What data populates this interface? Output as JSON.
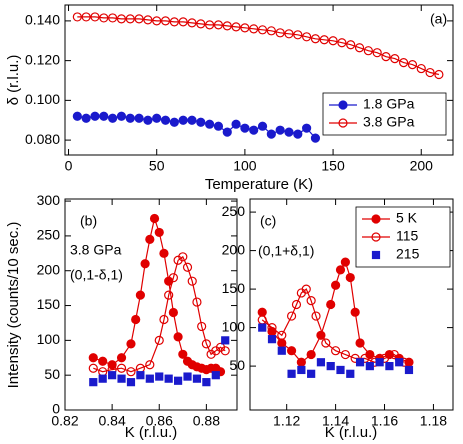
{
  "chart_data": [
    {
      "type": "scatter",
      "annotations": [
        "(a)"
      ],
      "x_label": "Temperature (K)",
      "y_label": "δ (r.l.u.)",
      "xlim": [
        -2,
        218
      ],
      "ylim": [
        0.0725,
        0.148
      ],
      "xticks": [
        0,
        50,
        100,
        150,
        200
      ],
      "yticks": [
        {
          "value": 0.08,
          "label": "0.080"
        },
        {
          "value": 0.1,
          "label": "0.100"
        },
        {
          "value": 0.12,
          "label": "0.120"
        },
        {
          "value": 0.14,
          "label": "0.140"
        }
      ],
      "legend": "lower right",
      "series": [
        {
          "name": "1.8 GPa",
          "color": "#1a1acc",
          "marker": "circle",
          "filled": true,
          "line": true,
          "x": [
            5,
            10,
            15,
            20,
            25,
            30,
            35,
            40,
            45,
            50,
            55,
            60,
            65,
            70,
            75,
            80,
            85,
            90,
            95,
            100,
            105,
            110,
            115,
            120,
            125,
            130,
            135,
            140
          ],
          "values": [
            0.092,
            0.091,
            0.092,
            0.092,
            0.091,
            0.092,
            0.091,
            0.091,
            0.09,
            0.091,
            0.09,
            0.089,
            0.09,
            0.09,
            0.089,
            0.088,
            0.087,
            0.084,
            0.088,
            0.086,
            0.085,
            0.087,
            0.083,
            0.085,
            0.084,
            0.083,
            0.086,
            0.081
          ]
        },
        {
          "name": "3.8 GPa",
          "color": "#e00000",
          "marker": "circle",
          "filled": false,
          "line": true,
          "x": [
            5,
            10,
            15,
            20,
            25,
            30,
            35,
            40,
            45,
            50,
            55,
            60,
            65,
            70,
            75,
            80,
            85,
            90,
            95,
            100,
            105,
            110,
            115,
            120,
            125,
            130,
            135,
            140,
            145,
            150,
            155,
            160,
            165,
            170,
            175,
            180,
            185,
            190,
            195,
            200,
            205,
            210
          ],
          "values": [
            0.142,
            0.142,
            0.142,
            0.1415,
            0.1415,
            0.141,
            0.141,
            0.141,
            0.1405,
            0.14,
            0.14,
            0.1395,
            0.1395,
            0.139,
            0.1385,
            0.138,
            0.138,
            0.1375,
            0.137,
            0.1365,
            0.136,
            0.1355,
            0.135,
            0.134,
            0.1335,
            0.133,
            0.132,
            0.131,
            0.1305,
            0.13,
            0.129,
            0.128,
            0.1265,
            0.125,
            0.124,
            0.122,
            0.121,
            0.119,
            0.118,
            0.116,
            0.114,
            0.113
          ]
        }
      ]
    },
    {
      "type": "scatter",
      "annotations": [
        "(b)",
        "3.8 GPa",
        "(0,1-δ,1)"
      ],
      "x_label": "K (r.l.u.)",
      "y_label": "Intensity (counts/10 sec.)",
      "xlim": [
        0.82,
        0.893
      ],
      "ylim": [
        0,
        303
      ],
      "xticks": [
        0.82,
        0.84,
        0.86,
        0.88
      ],
      "yticks": [
        0,
        50,
        100,
        150,
        200,
        250,
        300
      ],
      "series": [
        {
          "color": "#e00000",
          "marker": "circle",
          "filled": true,
          "line": true,
          "x": [
            0.832,
            0.836,
            0.84,
            0.844,
            0.848,
            0.85,
            0.852,
            0.854,
            0.856,
            0.858,
            0.86,
            0.862,
            0.864,
            0.866,
            0.868,
            0.87,
            0.872,
            0.874,
            0.876,
            0.878,
            0.88,
            0.882,
            0.884,
            0.886
          ],
          "values": [
            75,
            70,
            65,
            75,
            95,
            130,
            165,
            210,
            245,
            275,
            255,
            225,
            185,
            140,
            105,
            80,
            70,
            65,
            62,
            60,
            58,
            60,
            60,
            55
          ]
        },
        {
          "color": "#e00000",
          "marker": "circle",
          "filled": false,
          "line": true,
          "x": [
            0.832,
            0.836,
            0.84,
            0.844,
            0.848,
            0.852,
            0.856,
            0.86,
            0.862,
            0.864,
            0.866,
            0.868,
            0.87,
            0.872,
            0.874,
            0.876,
            0.878,
            0.88,
            0.882,
            0.884,
            0.886,
            0.888
          ],
          "values": [
            60,
            55,
            58,
            60,
            55,
            60,
            65,
            100,
            130,
            165,
            190,
            215,
            220,
            205,
            185,
            155,
            120,
            95,
            80,
            85,
            90,
            85
          ]
        },
        {
          "color": "#1a1acc",
          "marker": "square",
          "filled": true,
          "line": false,
          "x": [
            0.832,
            0.836,
            0.84,
            0.844,
            0.848,
            0.852,
            0.856,
            0.86,
            0.864,
            0.868,
            0.872,
            0.876,
            0.88,
            0.884,
            0.888
          ],
          "values": [
            40,
            45,
            50,
            45,
            40,
            50,
            45,
            48,
            45,
            42,
            48,
            45,
            40,
            50,
            100
          ]
        }
      ]
    },
    {
      "type": "scatter",
      "annotations": [
        "(c)",
        "(0,1+δ,1)"
      ],
      "x_label": "K (r.l.u.)",
      "xlim": [
        1.105,
        1.188
      ],
      "ylim": [
        -7,
        267
      ],
      "xticks": [
        1.12,
        1.14,
        1.16,
        1.18
      ],
      "yticks": [
        50,
        100,
        150,
        200,
        250
      ],
      "legend": "upper right",
      "series": [
        {
          "name": "5 K",
          "color": "#e00000",
          "marker": "circle",
          "filled": true,
          "line": true,
          "x": [
            1.11,
            1.114,
            1.118,
            1.122,
            1.126,
            1.13,
            1.134,
            1.138,
            1.14,
            1.142,
            1.144,
            1.146,
            1.148,
            1.15,
            1.154,
            1.158,
            1.162,
            1.166,
            1.17
          ],
          "values": [
            120,
            95,
            80,
            70,
            55,
            65,
            90,
            130,
            155,
            175,
            185,
            165,
            120,
            80,
            65,
            60,
            65,
            60,
            55
          ]
        },
        {
          "name": "115",
          "color": "#e00000",
          "marker": "circle",
          "filled": false,
          "line": true,
          "x": [
            1.11,
            1.114,
            1.118,
            1.122,
            1.124,
            1.126,
            1.128,
            1.13,
            1.132,
            1.136,
            1.14,
            1.144,
            1.148,
            1.152,
            1.156,
            1.16,
            1.164,
            1.168
          ],
          "values": [
            110,
            100,
            90,
            115,
            130,
            145,
            150,
            135,
            115,
            80,
            70,
            65,
            60,
            60,
            55,
            60,
            65,
            55
          ]
        },
        {
          "name": "215",
          "color": "#1a1acc",
          "marker": "square",
          "filled": true,
          "line": false,
          "x": [
            1.11,
            1.114,
            1.118,
            1.122,
            1.126,
            1.13,
            1.134,
            1.138,
            1.142,
            1.146,
            1.15,
            1.154,
            1.158,
            1.162,
            1.166,
            1.17
          ],
          "values": [
            100,
            85,
            70,
            40,
            45,
            40,
            55,
            50,
            45,
            40,
            55,
            50,
            55,
            50,
            55,
            45
          ]
        }
      ]
    }
  ]
}
